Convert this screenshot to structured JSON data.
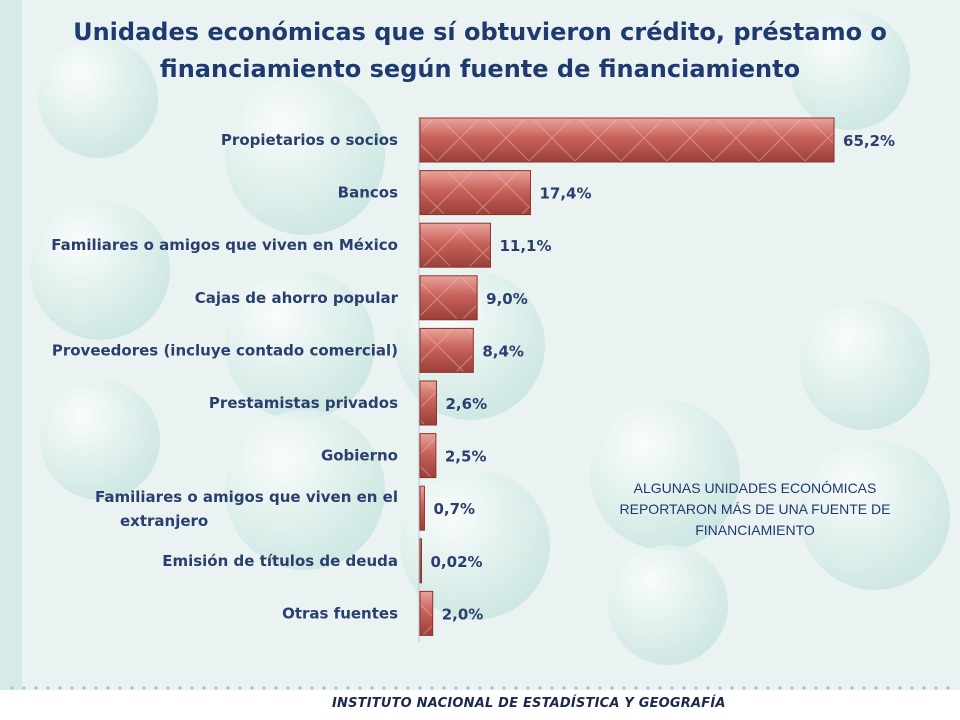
{
  "title_line1": "Unidades económicas que sí obtuvieron  crédito, préstamo o",
  "title_line2": "financiamiento según fuente de financiamiento",
  "note": "ALGUNAS UNIDADES ECONÓMICAS REPORTARON MÁS DE UNA FUENTE DE FINANCIAMIENTO",
  "footer": "INSTITUTO NACIONAL DE ESTADÍSTICA Y GEOGRAFÍA",
  "colors": {
    "bar": "#c0584f",
    "bar_light": "#e6928a",
    "title": "#1e3a6e",
    "label": "#2a3f6e"
  },
  "chart_data": {
    "type": "bar",
    "orientation": "horizontal",
    "title": "Unidades económicas que sí obtuvieron  crédito, préstamo o financiamiento según fuente de financiamiento",
    "categories": [
      "Propietarios o socios",
      "Bancos",
      "Familiares o amigos que viven en México",
      "Cajas de ahorro popular",
      "Proveedores (incluye contado comercial)",
      "Prestamistas privados",
      "Gobierno",
      "Familiares o amigos que viven en el extranjero",
      "Emisión de títulos de deuda",
      "Otras fuentes"
    ],
    "values": [
      65.2,
      17.4,
      11.1,
      9.0,
      8.4,
      2.6,
      2.5,
      0.7,
      0.02,
      2.0
    ],
    "value_labels": [
      "65,2%",
      "17,4%",
      "11,1%",
      "9,0%",
      "8,4%",
      "2,6%",
      "2,5%",
      "0,7%",
      "0,02%",
      "2,0%"
    ],
    "unit": "%",
    "xlim": [
      0,
      100
    ],
    "grid": false,
    "legend": "none"
  }
}
